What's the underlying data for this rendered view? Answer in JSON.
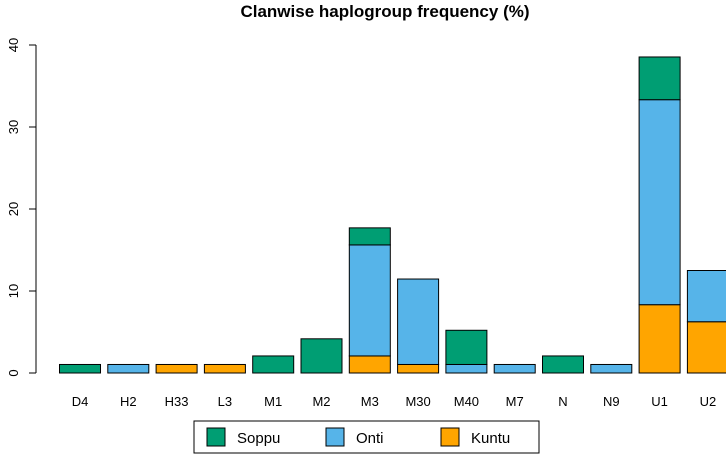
{
  "chart_data": {
    "type": "bar",
    "stacked": true,
    "title": "Clanwise haplogroup frequency (%)",
    "xlabel": "",
    "ylabel": "",
    "ylim": [
      0,
      40
    ],
    "yticks": [
      0,
      10,
      20,
      30,
      40
    ],
    "grid": false,
    "legend_position": "bottom",
    "categories": [
      "D4",
      "H2",
      "H33",
      "L3",
      "M1",
      "M2",
      "M3",
      "M30",
      "M40",
      "M7",
      "N",
      "N9",
      "U1",
      "U2"
    ],
    "series": [
      {
        "name": "Kuntu",
        "color": "#FFA500",
        "values": [
          0,
          0,
          1.04,
          1.04,
          0,
          0,
          2.08,
          1.04,
          0,
          0,
          0,
          0,
          8.33,
          6.25
        ]
      },
      {
        "name": "Onti",
        "color": "#56B4E9",
        "values": [
          0,
          1.04,
          0,
          0,
          0,
          0,
          13.54,
          10.42,
          1.04,
          1.04,
          0,
          1.04,
          25.0,
          6.25
        ]
      },
      {
        "name": "Soppu",
        "color": "#009E73",
        "values": [
          1.04,
          0,
          0,
          0,
          2.08,
          4.17,
          2.08,
          0,
          4.17,
          0,
          2.08,
          0,
          5.21,
          0
        ]
      }
    ],
    "legend_order": [
      "Soppu",
      "Onti",
      "Kuntu"
    ]
  }
}
